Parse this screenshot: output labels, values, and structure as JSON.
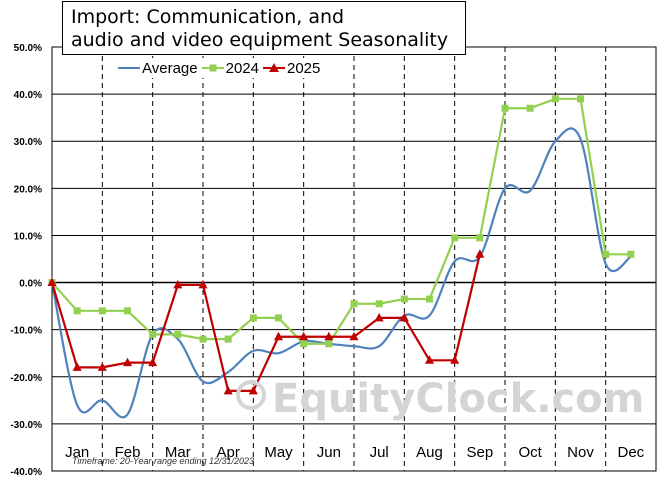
{
  "chart_data": {
    "type": "line",
    "title": "Import: Communication, and audio and video equipment Seasonality",
    "title_lines": [
      "Import: Communication, and",
      "audio and video equipment Seasonality"
    ],
    "months": [
      "Jan",
      "Feb",
      "Mar",
      "Apr",
      "May",
      "Jun",
      "Jul",
      "Aug",
      "Sep",
      "Oct",
      "Nov",
      "Dec"
    ],
    "y_tick_labels": [
      "50.0%",
      "40.0%",
      "30.0%",
      "20.0%",
      "10.0%",
      "0.0%",
      "-10.0%",
      "-20.0%",
      "-30.0%",
      "-40.0%"
    ],
    "ylim": [
      -40,
      50
    ],
    "x_range": [
      0,
      12
    ],
    "grid": true,
    "legend_position": "top-left",
    "series": [
      {
        "name": "Average",
        "color": "#4f81bd",
        "marker": "none",
        "points": [
          [
            0,
            0
          ],
          [
            0.5,
            -26
          ],
          [
            1,
            -25
          ],
          [
            1.5,
            -28
          ],
          [
            2,
            -11
          ],
          [
            2.5,
            -12
          ],
          [
            3,
            -21
          ],
          [
            3.5,
            -19
          ],
          [
            4,
            -14.5
          ],
          [
            4.5,
            -15
          ],
          [
            5,
            -12.5
          ],
          [
            5.5,
            -13
          ],
          [
            6,
            -13.5
          ],
          [
            6.5,
            -13.5
          ],
          [
            7,
            -7
          ],
          [
            7.5,
            -7
          ],
          [
            8,
            4.5
          ],
          [
            8.5,
            5.5
          ],
          [
            9,
            20
          ],
          [
            9.5,
            19.5
          ],
          [
            10,
            30
          ],
          [
            10.5,
            30.5
          ],
          [
            11,
            4
          ],
          [
            11.5,
            5.5
          ]
        ]
      },
      {
        "name": "2024",
        "color": "#92d050",
        "marker": "square",
        "points": [
          [
            0,
            0
          ],
          [
            0.5,
            -6
          ],
          [
            1,
            -6
          ],
          [
            1.5,
            -6
          ],
          [
            2,
            -11
          ],
          [
            2.5,
            -11
          ],
          [
            3,
            -12
          ],
          [
            3.5,
            -12
          ],
          [
            4,
            -7.5
          ],
          [
            4.5,
            -7.5
          ],
          [
            5,
            -13
          ],
          [
            5.5,
            -13
          ],
          [
            6,
            -4.5
          ],
          [
            6.5,
            -4.5
          ],
          [
            7,
            -3.5
          ],
          [
            7.5,
            -3.5
          ],
          [
            8,
            9.5
          ],
          [
            8.5,
            9.5
          ],
          [
            9,
            37
          ],
          [
            9.5,
            37
          ],
          [
            10,
            39
          ],
          [
            10.5,
            39
          ],
          [
            11,
            6
          ],
          [
            11.5,
            6
          ]
        ]
      },
      {
        "name": "2025",
        "color": "#c00000",
        "marker": "triangle",
        "points": [
          [
            0,
            0
          ],
          [
            0.5,
            -18
          ],
          [
            1,
            -18
          ],
          [
            1.5,
            -17
          ],
          [
            2,
            -17
          ],
          [
            2.5,
            -0.5
          ],
          [
            3,
            -0.5
          ],
          [
            3.5,
            -23
          ],
          [
            4,
            -23
          ],
          [
            4.5,
            -11.5
          ],
          [
            5,
            -11.5
          ],
          [
            5.5,
            -11.5
          ],
          [
            6,
            -11.5
          ],
          [
            6.5,
            -7.5
          ],
          [
            7,
            -7.5
          ],
          [
            7.5,
            -16.5
          ],
          [
            8,
            -16.5
          ],
          [
            8.5,
            6
          ]
        ]
      }
    ]
  },
  "watermark": "EquityClock.com",
  "timeframe": "Timeframe: 20-Year range ending 12/31/2023"
}
